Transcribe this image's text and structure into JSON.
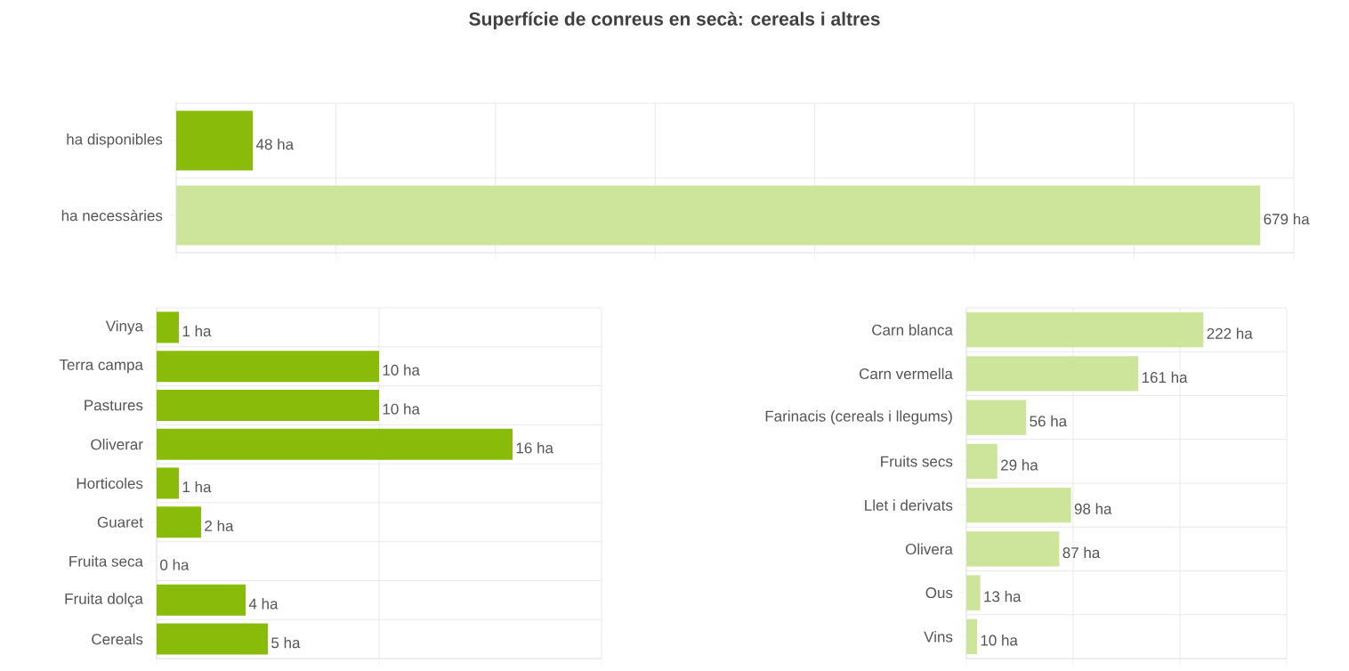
{
  "chart_data": [
    {
      "type": "bar",
      "title": "Superfície de conreus en secà: cereals i altres",
      "orientation": "horizontal",
      "categories": [
        "ha disponibles",
        "ha necessàries"
      ],
      "values": [
        48,
        679
      ],
      "colors": [
        "#88bb0a",
        "#cde59a"
      ],
      "value_labels": [
        "48 ha",
        "679 ha"
      ],
      "xlim": [
        0,
        700
      ],
      "xticks": [
        {
          "value": 0,
          "label": null
        },
        {
          "value": 100,
          "label": null
        },
        {
          "value": 200,
          "label": null
        },
        {
          "value": 300,
          "label": null
        },
        {
          "value": 400,
          "label": null
        },
        {
          "value": 500,
          "label": null
        },
        {
          "value": 600,
          "label": null
        },
        {
          "value": 700,
          "label": null
        }
      ],
      "grid": true,
      "tick_labels": "y"
    },
    {
      "type": "bar",
      "orientation": "horizontal",
      "categories": [
        "Vinya",
        "Terra campa",
        "Pastures",
        "Oliverar",
        "Horticoles",
        "Guaret",
        "Fruita seca",
        "Fruita dolça",
        "Cereals"
      ],
      "values": [
        1,
        10,
        10,
        16,
        1,
        2,
        0,
        4,
        5
      ],
      "color": "#88bb0a",
      "value_labels": [
        "1 ha",
        "10 ha",
        "10 ha",
        "16 ha",
        "1 ha",
        "2 ha",
        "0 ha",
        "4 ha",
        "5 ha"
      ],
      "xlim": [
        0,
        20
      ],
      "xticks": [
        {
          "value": 0,
          "label": null
        },
        {
          "value": 10,
          "label": null
        },
        {
          "value": 20,
          "label": null
        }
      ],
      "grid": true,
      "tick_labels": "y"
    },
    {
      "type": "bar",
      "orientation": "horizontal",
      "categories": [
        "Carn blanca",
        "Carn vermella",
        "Farinacis (cereals i llegums)",
        "Fruits secs",
        "Llet i derivats",
        "Olivera",
        "Ous",
        "Vins"
      ],
      "values": [
        222,
        161,
        56,
        29,
        98,
        87,
        13,
        10
      ],
      "color": "#cde59a",
      "value_labels": [
        "222 ha",
        "161 ha",
        "56 ha",
        "29 ha",
        "98 ha",
        "87 ha",
        "13 ha",
        "10 ha"
      ],
      "xlim": [
        0,
        300
      ],
      "xticks": [
        {
          "value": 0,
          "label": null
        },
        {
          "value": 100,
          "label": null
        },
        {
          "value": 200,
          "label": null
        },
        {
          "value": 300,
          "label": null
        }
      ],
      "grid": true,
      "tick_labels": "y"
    }
  ]
}
